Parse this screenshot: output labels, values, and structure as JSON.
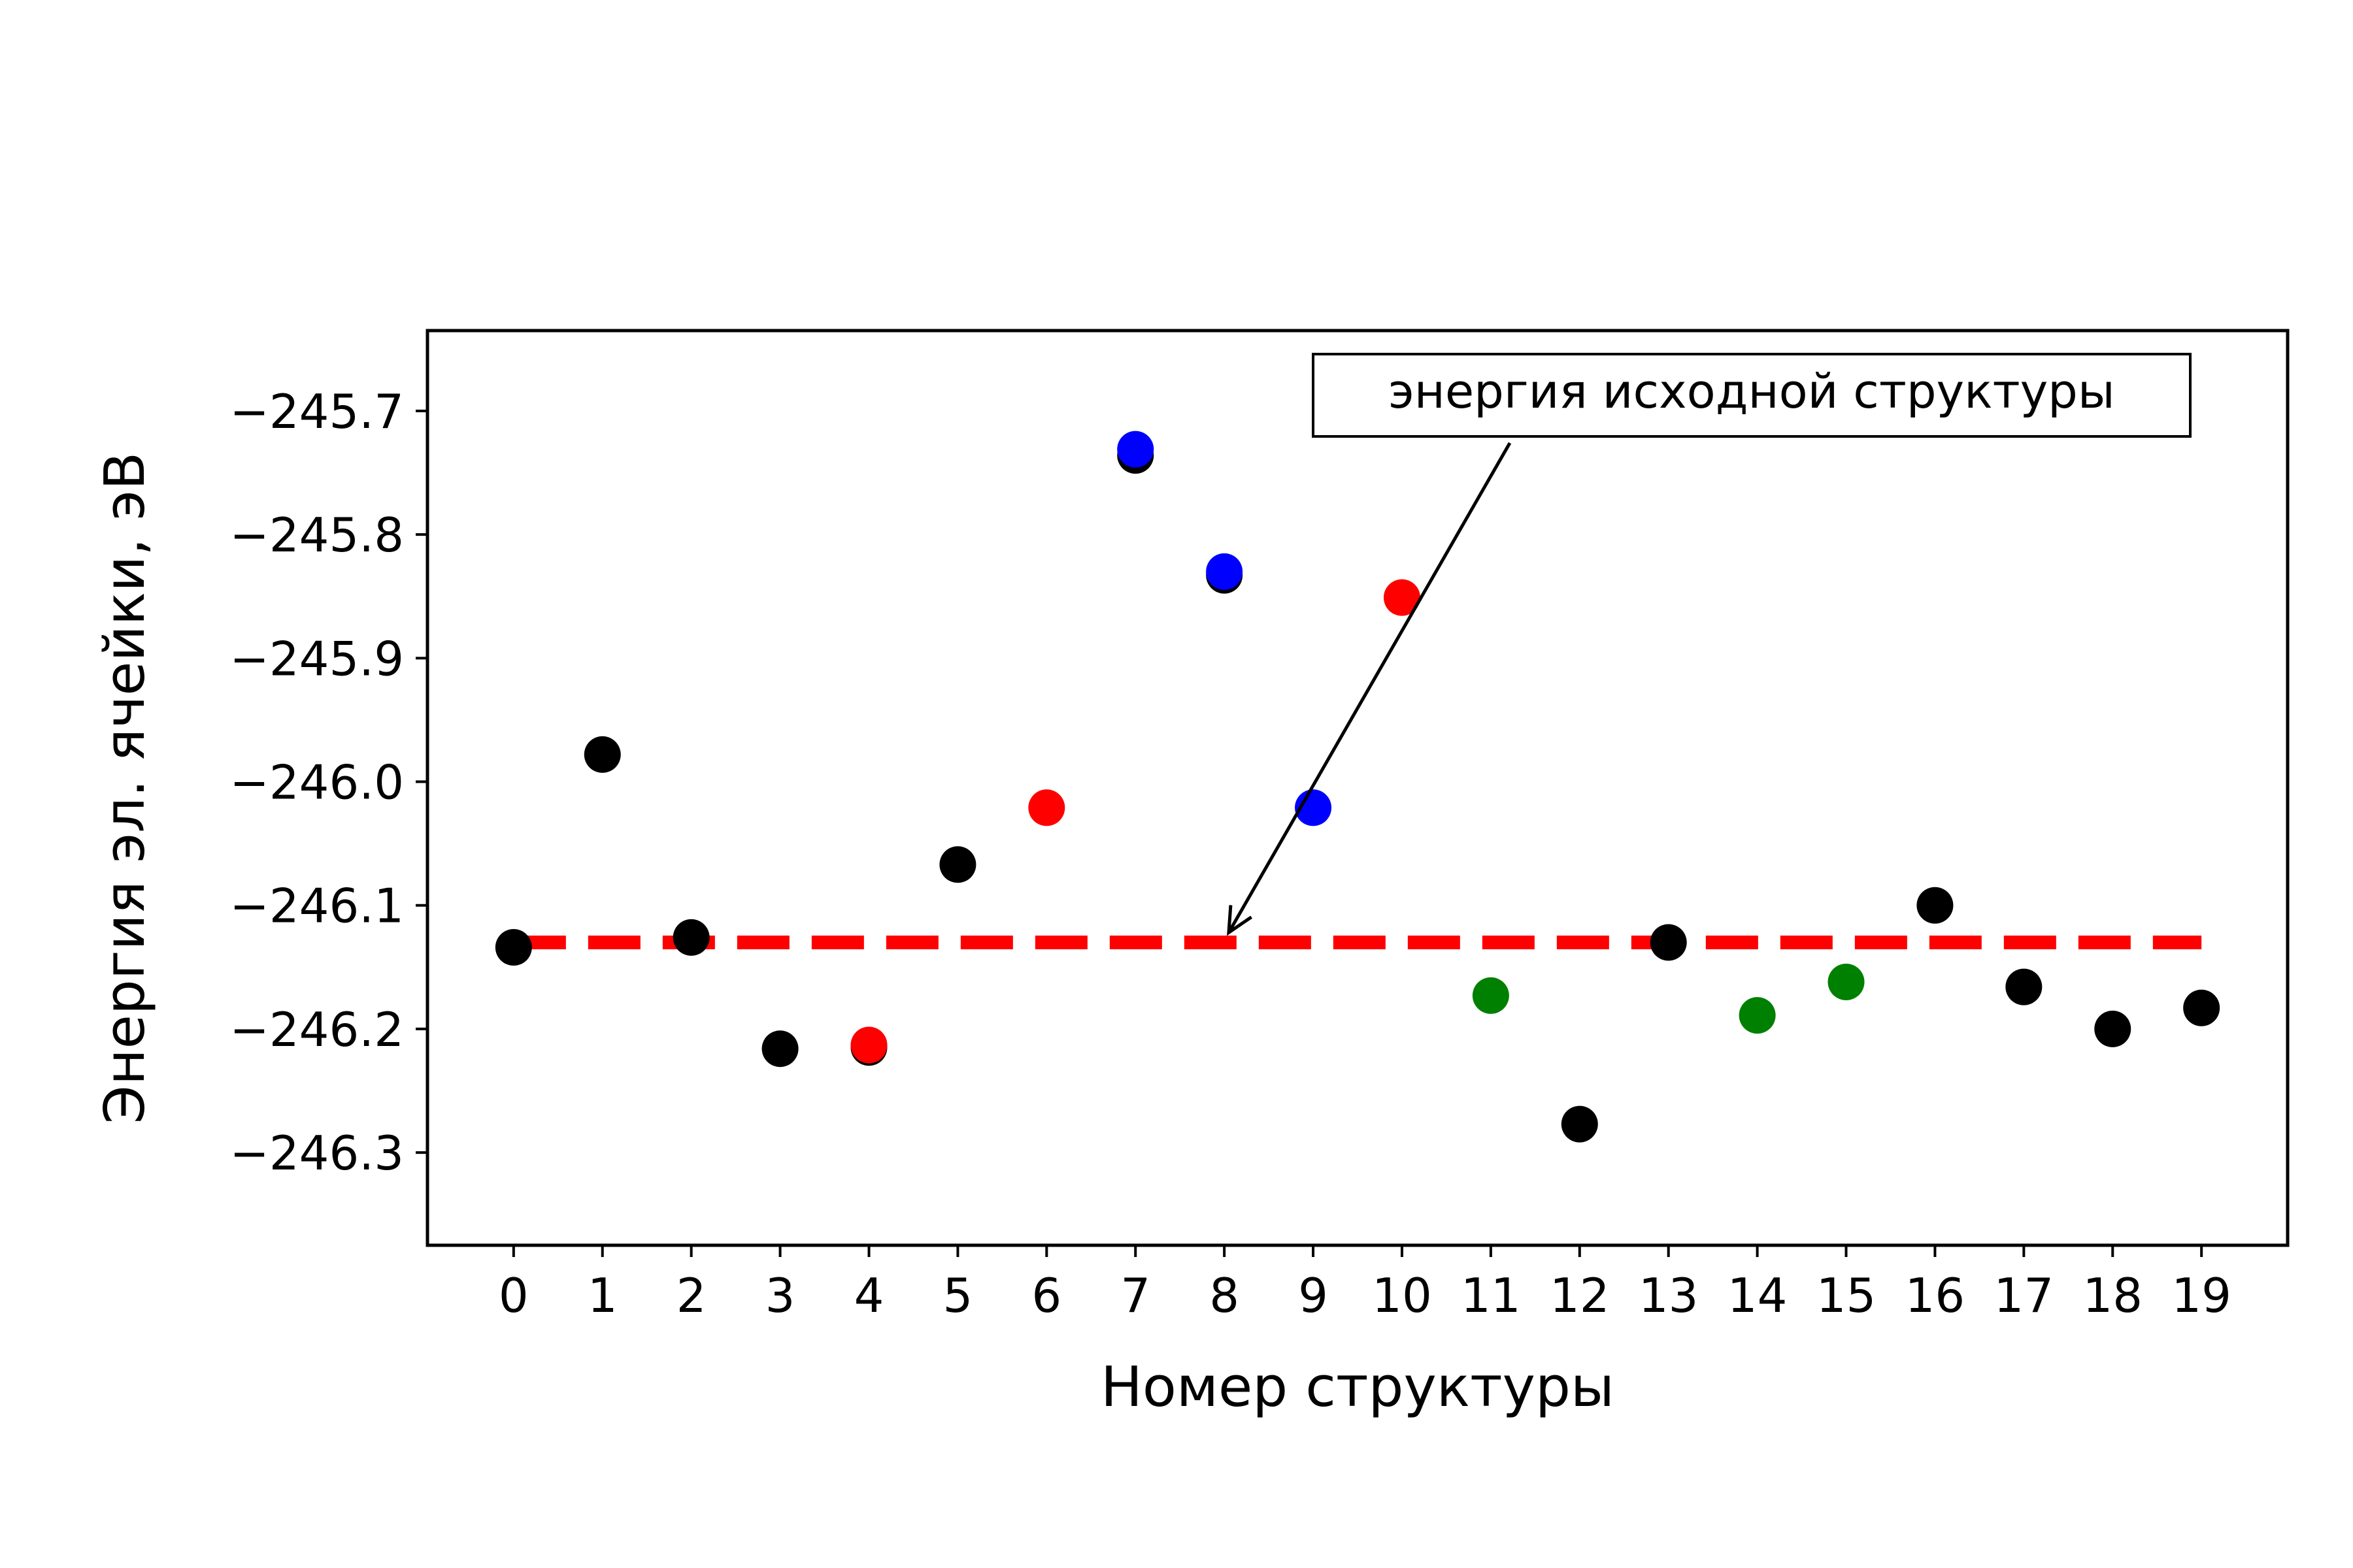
{
  "chart_data": {
    "type": "scatter",
    "xlabel": "Номер структуры",
    "ylabel": "Энергия эл. ячейки, эВ",
    "xlim": [
      -0.97,
      19.97
    ],
    "ylim": [
      -246.375,
      -245.635
    ],
    "x_ticks": [
      "0",
      "1",
      "2",
      "3",
      "4",
      "5",
      "6",
      "7",
      "8",
      "9",
      "10",
      "11",
      "12",
      "13",
      "14",
      "15",
      "16",
      "17",
      "18",
      "19"
    ],
    "y_ticks": [
      {
        "value": -245.7,
        "label": "−245.7"
      },
      {
        "value": -245.8,
        "label": "−245.8"
      },
      {
        "value": -245.9,
        "label": "−245.9"
      },
      {
        "value": -246.0,
        "label": "−246.0"
      },
      {
        "value": -246.1,
        "label": "−246.1"
      },
      {
        "value": -246.2,
        "label": "−246.2"
      },
      {
        "value": -246.3,
        "label": "−246.3"
      }
    ],
    "grid": false,
    "series": [
      {
        "color": "#000000",
        "points": [
          {
            "x": 0,
            "y": -246.134
          },
          {
            "x": 1,
            "y": -245.978
          },
          {
            "x": 2,
            "y": -246.126
          },
          {
            "x": 3,
            "y": -246.216
          },
          {
            "x": 4,
            "y": -246.215
          },
          {
            "x": 5,
            "y": -246.067
          },
          {
            "x": 7,
            "y": -245.736
          },
          {
            "x": 8,
            "y": -245.833
          },
          {
            "x": 12,
            "y": -246.277
          },
          {
            "x": 13,
            "y": -246.13
          },
          {
            "x": 16,
            "y": -246.1
          },
          {
            "x": 17,
            "y": -246.166
          },
          {
            "x": 18,
            "y": -246.2
          },
          {
            "x": 19,
            "y": -246.183
          }
        ]
      },
      {
        "color": "#ff0000",
        "points": [
          {
            "x": 4,
            "y": -246.213
          },
          {
            "x": 6,
            "y": -246.021
          },
          {
            "x": 10,
            "y": -245.851
          }
        ]
      },
      {
        "color": "#0000ff",
        "points": [
          {
            "x": 7,
            "y": -245.731
          },
          {
            "x": 8,
            "y": -245.83
          },
          {
            "x": 9,
            "y": -246.021
          }
        ]
      },
      {
        "color": "#008000",
        "points": [
          {
            "x": 11,
            "y": -246.173
          },
          {
            "x": 14,
            "y": -246.189
          },
          {
            "x": 15,
            "y": -246.162
          }
        ]
      }
    ],
    "reference_line": {
      "y": -246.13,
      "x_range": [
        0,
        19
      ],
      "color": "#ff0000",
      "style": "dashed"
    },
    "annotation": {
      "text": "энергия исходной структуры",
      "arrow_target": {
        "x": 8.05,
        "y": -246.122
      }
    }
  }
}
